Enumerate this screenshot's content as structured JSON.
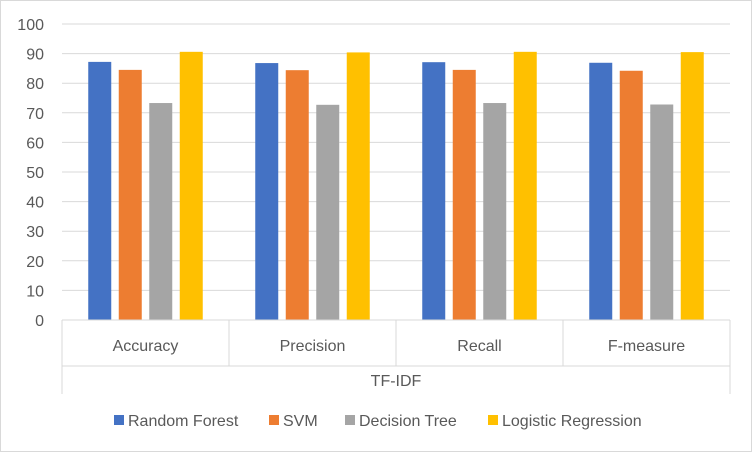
{
  "chart_data": {
    "type": "bar",
    "title": "",
    "xlabel": "",
    "ylabel": "",
    "group_label": "TF-IDF",
    "categories": [
      "Accuracy",
      "Precision",
      "Recall",
      "F-measure"
    ],
    "ylim": [
      0,
      100
    ],
    "yticks": [
      0,
      10,
      20,
      30,
      40,
      50,
      60,
      70,
      80,
      90,
      100
    ],
    "grid": true,
    "legend_position": "bottom",
    "series": [
      {
        "name": "Random Forest",
        "color": "#4472C4",
        "values": [
          87.2,
          86.8,
          87.1,
          86.9
        ]
      },
      {
        "name": "SVM",
        "color": "#ED7D31",
        "values": [
          84.5,
          84.4,
          84.5,
          84.2
        ]
      },
      {
        "name": "Decision Tree",
        "color": "#A5A5A5",
        "values": [
          73.3,
          72.7,
          73.3,
          72.8
        ]
      },
      {
        "name": "Logistic Regression",
        "color": "#FFC000",
        "values": [
          90.6,
          90.4,
          90.6,
          90.5
        ]
      }
    ]
  }
}
